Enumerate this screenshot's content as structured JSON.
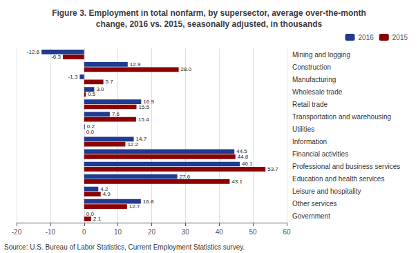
{
  "chart_data": {
    "type": "bar",
    "orientation": "horizontal",
    "title": "Figure 3. Employment in total nonfarm, by supersector, average over-the-month\nchange, 2016 vs. 2015, seasonally adjusted, in thousands",
    "annotations": [
      "Source: U.S. Bureau of Labor Statistics, Current Employment Statistics survey."
    ],
    "categories": [
      "Mining and logging",
      "Construction",
      "Manufacturing",
      "Wholesale trade",
      "Retail trade",
      "Transportation and warehousing",
      "Utilities",
      "Information",
      "Financial activities",
      "Professional and business services",
      "Education and health services",
      "Leisure and hospitality",
      "Other services",
      "Government"
    ],
    "series": [
      {
        "name": "2016",
        "color": "#1F3A8F",
        "values": [
          -12.6,
          12.9,
          -1.3,
          3.0,
          16.9,
          7.6,
          0.2,
          14.7,
          44.5,
          46.1,
          27.6,
          4.2,
          16.8,
          0.0
        ],
        "value_labels": [
          "-12.6",
          "12.9",
          "-1.3",
          "3.0",
          "16.9",
          "7.6",
          "0.2",
          "14.7",
          "44.5",
          "46.1",
          "27.6",
          "4.2",
          "16.8",
          "0.0"
        ]
      },
      {
        "name": "2015",
        "color": "#8B0000",
        "values": [
          -6.3,
          28.0,
          5.7,
          0.5,
          15.5,
          15.4,
          0.0,
          12.2,
          44.8,
          53.7,
          43.1,
          4.9,
          12.7,
          2.1
        ],
        "value_labels": [
          "-6.3",
          "28.0",
          "5.7",
          "0.5",
          "15.5",
          "15.4",
          "0.0",
          "12.2",
          "44.8",
          "53.7",
          "43.1",
          "4.9",
          "12.7",
          "2.1"
        ]
      }
    ],
    "xlim": [
      -20,
      60
    ],
    "xticks": [
      -20,
      -10,
      0,
      10,
      20,
      30,
      40,
      50,
      60
    ],
    "grid": true,
    "legend": "upper right",
    "data_labels": true
  }
}
